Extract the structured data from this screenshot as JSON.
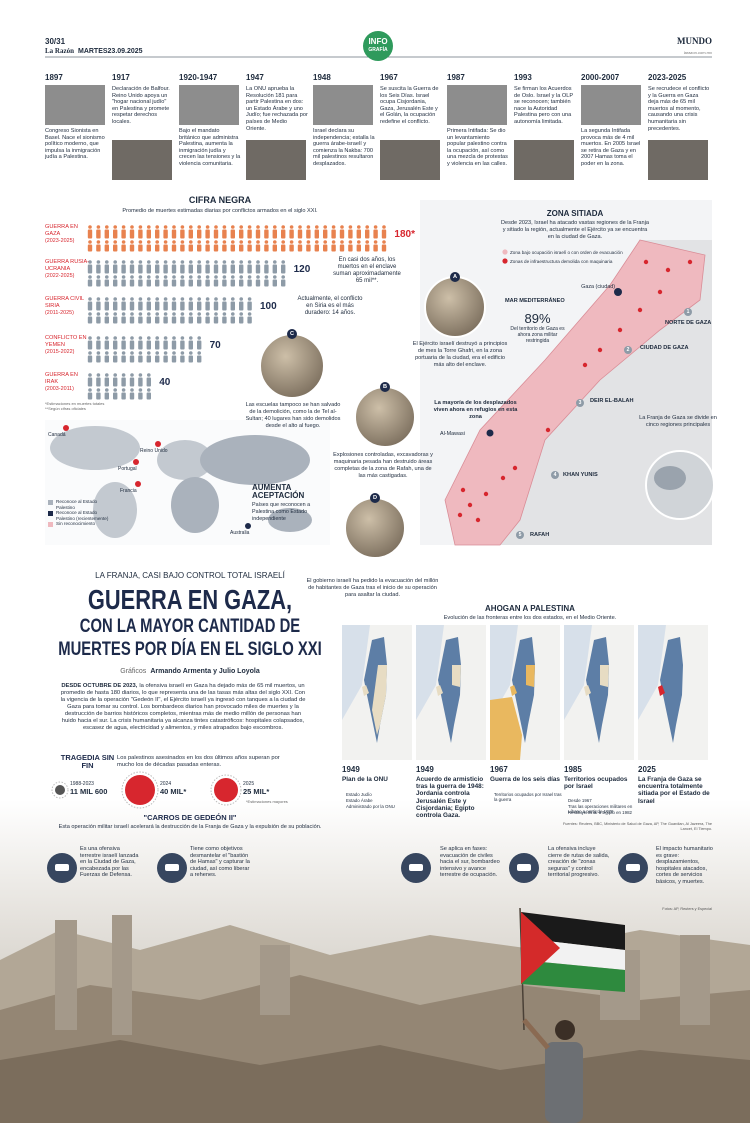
{
  "header": {
    "pages": "30/31",
    "paper": "La Razón",
    "date": "MARTES23.09.2025",
    "badge": [
      "INFO",
      "GRAFÍA"
    ],
    "section": "MUNDO",
    "site": "larazon.com.mx"
  },
  "timeline": [
    {
      "year": "1897",
      "text": "Congreso Sionista en Basel. Nace el sionismo político moderno, que impulsa la inmigración judía a Palestina."
    },
    {
      "year": "1917",
      "text": "Declaración de Balfour. Reino Unido apoya un \"hogar nacional judío\" en Palestina y promete respetar derechos locales."
    },
    {
      "year": "1920-1947",
      "text": "Bajo el mandato británico que administra Palestina, aumenta la inmigración judía y crecen las tensiones y la violencia comunitaria."
    },
    {
      "year": "1947",
      "text": "La ONU aprueba la Resolución 181 para partir Palestina en dos: un Estado Árabe y uno Judío; fue rechazada por países de Medio Oriente."
    },
    {
      "year": "1948",
      "text": "Israel declara su independencia; estalla la guerra árabe-israelí y comienza la Nakba: 700 mil palestinos resultaron desplazados."
    },
    {
      "year": "1967",
      "text": "Se suscita la Guerra de los Seis Días. Israel ocupa Cisjordania, Gaza, Jerusalén Este y el Golán, la ocupación redefine el conflicto."
    },
    {
      "year": "1987",
      "text": "Primera Intifada: Se dio un levantamiento popular palestino contra la ocupación, así como una mezcla de protestas y violencia en las calles."
    },
    {
      "year": "1993",
      "text": "Se firman los Acuerdos de Oslo. Israel y la OLP se reconocen; también nace la Autoridad Palestina pero con una autonomía limitada."
    },
    {
      "year": "2000-2007",
      "text": "La segunda Intifada provoca más de 4 mil muertos. En 2005 Israel se retira de Gaza y en 2007 Hamas toma el poder en la zona."
    },
    {
      "year": "2023-2025",
      "text": "Se recrudece el conflicto y la Guerra en Gaza deja más de 65 mil muertos al momento, causando una crisis humanitaria sin precedentes."
    }
  ],
  "cifra_negra": {
    "title": "CIFRA NEGRA",
    "subtitle": "Promedio de muertes estimadas diarias por conflictos armados en el siglo XXI.",
    "rows": [
      {
        "name": "GUERRA EN GAZA",
        "period": "(2023-2025)",
        "value": 180,
        "label": "180*"
      },
      {
        "name": "GUERRA RUSIA-UCRANIA",
        "period": "(2022-2025)",
        "value": 120
      },
      {
        "name": "GUERRA CIVIL SIRIA",
        "period": "(2011-2025)",
        "value": 100
      },
      {
        "name": "CONFLICTO EN YEMEN",
        "period": "(2015-2022)",
        "value": 70
      },
      {
        "name": "GUERRA EN IRAK",
        "period": "(2003-2011)",
        "value": 40
      }
    ],
    "notes": [
      "En casi dos años, los muertos en el enclave suman aproximadamente 65 mil**.",
      "Actualmente, el conflicto en Siria es el más duradero: 14 años."
    ],
    "footnotes": [
      "*Estimaciones en muertes totales",
      "**Según cifras oficiales"
    ]
  },
  "photos": [
    {
      "letter": "A",
      "text": "El Ejército israelí destruyó a principios de mes la Torre Ghafri, en la zona portuaria de la ciudad, era el edificio más alto del enclave."
    },
    {
      "letter": "B",
      "text": "Explosiones controladas, excavadoras y maquinaria pesada han destruido áreas completas de la zona de Rafah, una de las más castigadas."
    },
    {
      "letter": "C",
      "text": "Las escuelas tampoco se han salvado de la demolición, como la de Tel al-Sultan; 40 lugares han sido demolidos desde el alto al fuego."
    },
    {
      "letter": "D",
      "text": "El gobierno israelí ha pedido la evacuación del millón de habitantes de Gaza tras el inicio de su operación para asaltar la ciudad."
    }
  ],
  "zona_sitiada": {
    "title": "ZONA SITIADA",
    "text": "Desde 2023, Israel ha atacado vastas regiones de la Franja y sitiado la región, actualmente el Ejército ya se encuentra en la ciudad de Gaza.",
    "legend": [
      "Zona bajo ocupación israelí o con orden de evacuación",
      "Zonas de infraestructura demolida con maquinaria"
    ],
    "percent": "89%",
    "percent_text": "Del territorio de Gaza es ahora zona militar restringida",
    "sea": "MAR MEDITERRÁNEO",
    "regions": [
      {
        "num": 1,
        "name": "NORTE DE GAZA"
      },
      {
        "num": 2,
        "name": "CIUDAD DE GAZA"
      },
      {
        "num": 3,
        "name": "DEIR EL-BALAH"
      },
      {
        "num": 4,
        "name": "KHAN YUNIS"
      },
      {
        "num": 5,
        "name": "RAFAH"
      }
    ],
    "city": "Gaza (ciudad)",
    "mawasi": "Al-Mawasi",
    "displaced": "La mayoría de los desplazados viven ahora en refugios en esta zona",
    "five": "La Franja de Gaza se divide en cinco regiones principales"
  },
  "world": {
    "title": "AUMENTA ACEPTACIÓN",
    "text": "Países que reconocen a Palestina como Estado independiente",
    "legend": [
      "Reconoce al Estado Palestino",
      "Reconoce al Estado Palestino (recientemente)",
      "Sin reconocimiento"
    ],
    "countries": [
      "Canadá",
      "Reino Unido",
      "Portugal",
      "Francia",
      "Australia"
    ]
  },
  "lead": {
    "kicker": "LA FRANJA, CASI BAJO CONTROL TOTAL ISRAELÍ",
    "title": [
      "GUERRA EN GAZA,",
      "CON LA MAYOR CANTIDAD DE",
      "MUERTES POR DÍA EN EL SIGLO XXI"
    ],
    "byline_label": "Gráficos",
    "byline": "Armando Armenta y Julio Loyola",
    "lead_in": "DESDE OCTUBRE DE 2023,",
    "body": "la ofensiva israelí en Gaza ha dejado más de 65 mil muertos, un promedio de hasta 180 diarios, lo que representa una de las tasas más altas del siglo XXI. Con la vigencia de la operación \"Gedeón II\", el Ejército israelí ya ingresó con tanques a la ciudad de Gaza para tomar su control. Los bombardeos diarios han provocado miles de muertes y la destrucción de barrios históricos completos, mientras más de medio millón de personas han huido hacia el sur. La crisis humanitaria ya alcanza tintes catastróficos: hospitales colapsados, escasez de agua, electricidad y alimentos, y miles atrapados bajo escombros."
  },
  "tragedia": {
    "title": "TRAGEDIA SIN FIN",
    "text": "Los palestinos asesinados en los dos últimos años superan por mucho los de décadas pasadas enteras.",
    "items": [
      {
        "period": "1988-2023",
        "total": "11 MIL 600"
      },
      {
        "period": "2024",
        "total": "40 MIL*"
      },
      {
        "period": "2025",
        "total": "25 MIL*"
      }
    ],
    "note": "*Estimaciones mayores"
  },
  "carros": {
    "title": "\"CARROS DE GEDEÓN II\"",
    "text": "Esta operación militar israelí acelerará la destrucción de la Franja de Gaza y la expulsión de su población.",
    "items": [
      "Es una ofensiva terrestre israelí lanzada en la Ciudad de Gaza, encabezada por las Fuerzas de Defensa.",
      "Tiene como objetivos desmantelar el \"bastión de Hamas\" y capturar la ciudad, así como liberar a rehenes.",
      "Se aplica en fases: evacuación de civiles hacia el sur, bombardeo intensivo y avance terrestre de ocupación.",
      "La ofensiva incluye cierre de rutas de salida, creación de \"zonas seguras\" y control territorial progresivo.",
      "El impacto humanitario es grave: desplazamientos, hospitales atacados, cortes de servicios básicos, y muertes."
    ]
  },
  "ahogan": {
    "title": "AHOGAN A PALESTINA",
    "subtitle": "Evolución de las fronteras entre los dos estados, en el Medio Oriente.",
    "maps": [
      {
        "year": "1949",
        "caption": "Plan de la ONU",
        "legend": [
          "Estado Judío",
          "Estado Árabe",
          "Administrado por la ONU"
        ]
      },
      {
        "year": "1949",
        "caption": "Acuerdo de armisticio tras la guerra de 1948: Jordania controla Jerusalén Este y Cisjordania; Egipto controla Gaza.",
        "legend": []
      },
      {
        "year": "1967",
        "caption": "Guerra de los seis días",
        "legend": [
          "Territorios ocupados por Israel tras la guerra"
        ]
      },
      {
        "year": "1985",
        "caption": "Territorios ocupados por Israel",
        "legend": [
          "Desde 1967",
          "Tras las operaciones militares en Líbano a partir de 1978",
          "Restituye Sinaí a Egipto en 1982"
        ]
      },
      {
        "year": "2025",
        "caption": "La Franja de Gaza se encuentra totalmente sitiada por el Estado de Israel",
        "legend": []
      }
    ],
    "sources": "Fuentes: Reuters, BBC, Ministerio de Salud de Gaza, AP, The Guardian, Al Jazeera, The Lancet, El Tiempo.",
    "photos": "Fotos: AP, Reuters y Especial"
  }
}
